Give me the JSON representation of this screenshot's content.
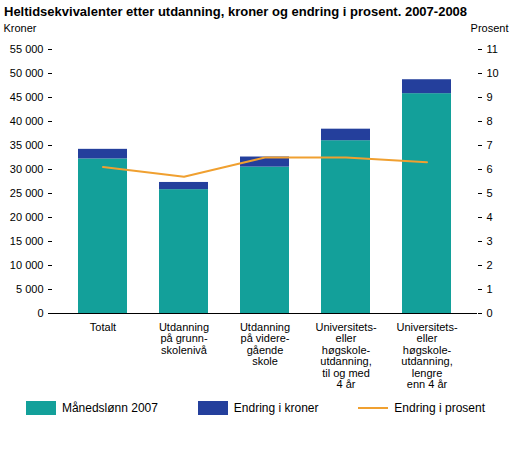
{
  "chart_data": {
    "type": "bar",
    "stacked": true,
    "title": "Heltidsekvivalenter etter utdanning, kroner og endring i prosent. 2007-2008",
    "y_label": "Kroner",
    "y2_label": "Prosent",
    "categories": [
      "Totalt",
      "Utdanning\npå grunn-\nskolenivå",
      "Utdanning\npå videre-\ngående\nskole",
      "Universitets-\neller\nhøgskole-\nutdanning,\ntil og med\n4 år",
      "Universitets-\neller\nhøgskole-\nutdanning,\nlengre\nenn 4 år"
    ],
    "series": [
      {
        "name": "Månedslønn 2007",
        "color": "#13a09a",
        "values": [
          32200,
          25800,
          30500,
          36000,
          45800
        ]
      },
      {
        "name": "Endring i kroner",
        "color": "#243f9c",
        "values": [
          2000,
          1500,
          2100,
          2400,
          2900
        ]
      },
      {
        "name": "Endring i prosent",
        "color": "#f0a030",
        "type": "line",
        "axis": "y2",
        "values": [
          6.1,
          5.7,
          6.5,
          6.5,
          6.3
        ]
      }
    ],
    "ylim": [
      0,
      55000
    ],
    "yticks": [
      0,
      {
        "value": 5000,
        "label": "5 000"
      },
      {
        "value": 10000,
        "label": "10 000"
      },
      {
        "value": 15000,
        "label": "15 000"
      },
      {
        "value": 20000,
        "label": "20 000"
      },
      {
        "value": 25000,
        "label": "25 000"
      },
      {
        "value": 30000,
        "label": "30 000"
      },
      {
        "value": 35000,
        "label": "35 000"
      },
      {
        "value": 40000,
        "label": "40 000"
      },
      {
        "value": 45000,
        "label": "45 000"
      },
      {
        "value": 50000,
        "label": "50 000"
      },
      {
        "value": 55000,
        "label": "55 000"
      }
    ],
    "y2lim": [
      0,
      11
    ],
    "y2ticks": [
      0,
      1,
      2,
      3,
      4,
      5,
      6,
      7,
      8,
      9,
      10,
      11
    ],
    "grid": false,
    "legend": "bottom"
  }
}
